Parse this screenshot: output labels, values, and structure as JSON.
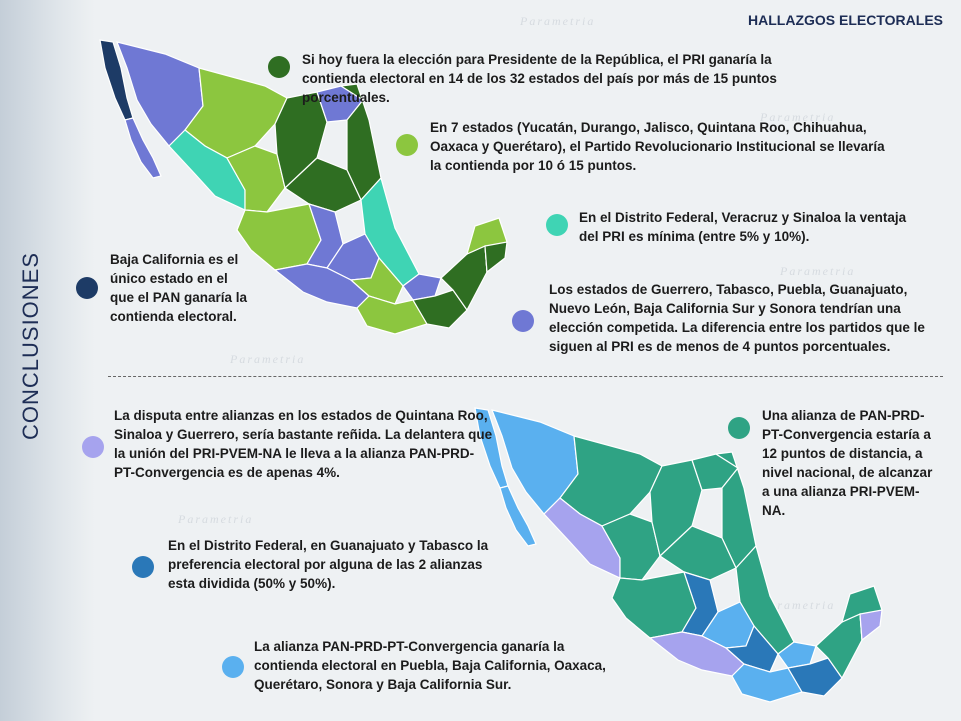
{
  "header": "HALLAZGOS ELECTORALES",
  "side_title": "CONCLUSIONES",
  "colors": {
    "dark_green": "#2f6e22",
    "light_green": "#8cc63f",
    "teal": "#3fd4b4",
    "periwinkle": "#6f78d4",
    "navy": "#1d3b66",
    "lavender": "#a6a3ee",
    "sea_green": "#2fa384",
    "steel_blue": "#2a78b8",
    "sky_blue": "#5ab0ef"
  },
  "watermark": "Parametria",
  "findings_2006": [
    {
      "text": "Si hoy fuera la elección para Presidente de la República, el PRI ganaría la contienda electoral en 14 de los 32 estados del país por más de 15 puntos porcentuales."
    },
    {
      "text": "En 7 estados (Yucatán, Durango, Jalisco, Quintana Roo, Chihuahua, Oaxaca y Querétaro), el Partido Revolucionario Institucional se llevaría la contienda por 10 ó 15 puntos."
    },
    {
      "text": "En el Distrito Federal, Veracruz y Sinaloa  la ventaja del PRI es mínima (entre 5%  y 10%)."
    },
    {
      "text": "Baja California es el único estado en el que el PAN ganaría la contienda electoral."
    },
    {
      "text": "Los estados de Guerrero, Tabasco, Puebla, Guanajuato, Nuevo León, Baja California Sur y Sonora tendrían una elección competida. La diferencia entre los partidos que le siguen al PRI es de menos de 4 puntos porcentuales."
    }
  ],
  "findings_alliances": [
    {
      "text": "La disputa entre alianzas en los estados de Quintana Roo, Sinaloa y Guerrero, sería bastante reñida. La delantera que la unión del PRI-PVEM-NA le lleva a la alianza PAN-PRD-PT-Convergencia es de apenas 4%."
    },
    {
      "text": "Una alianza de PAN-PRD-PT-Convergencia estaría a 12 puntos de distancia, a nivel nacional, de alcanzar a una alianza PRI-PVEM-NA."
    },
    {
      "text": "En el Distrito Federal, en Guanajuato y Tabasco la preferencia electoral por alguna de las 2 alianzas esta dividida (50% y 50%)."
    },
    {
      "text": "La alianza PAN-PRD-PT-Convergencia ganaría  la contienda electoral en Puebla, Baja California, Oaxaca, Querétaro, Sonora y Baja California Sur."
    }
  ]
}
